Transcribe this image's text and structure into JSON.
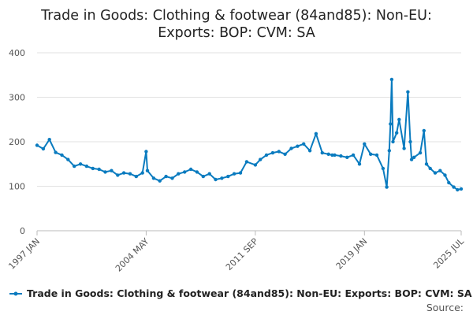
{
  "chart_data": {
    "type": "line",
    "title_lines": [
      "Trade in Goods: Clothing & footwear (84and85): Non-EU:",
      "Exports: BOP: CVM: SA"
    ],
    "xlabel": "",
    "ylabel": "",
    "x_ticks": [
      "1997 JAN",
      "2004 MAY",
      "2011 SEP",
      "2019 JAN",
      "2025 JUL"
    ],
    "y_ticks": [
      0,
      100,
      200,
      300,
      400
    ],
    "ylim": [
      0,
      400
    ],
    "grid": "horizontal",
    "legend_position": "bottom",
    "source_label": "Source:",
    "series": [
      {
        "name": "Trade in Goods: Clothing & footwear (84and85): Non-EU: Exports: BOP: CVM: SA",
        "color": "#0a7bbf",
        "x": [
          "1997 JAN",
          "1997 JUN",
          "1997 NOV",
          "1998 APR",
          "1998 SEP",
          "1999 FEB",
          "1999 JUL",
          "1999 DEC",
          "2000 MAY",
          "2000 OCT",
          "2001 MAR",
          "2001 AUG",
          "2002 JAN",
          "2002 JUN",
          "2002 NOV",
          "2003 APR",
          "2003 SEP",
          "2004 FEB",
          "2004 MAY",
          "2004 JUN",
          "2004 NOV",
          "2005 APR",
          "2005 SEP",
          "2006 FEB",
          "2006 JUL",
          "2006 DEC",
          "2007 MAY",
          "2007 OCT",
          "2008 MAR",
          "2008 AUG",
          "2009 JAN",
          "2009 JUN",
          "2009 NOV",
          "2010 APR",
          "2010 SEP",
          "2011 FEB",
          "2011 SEP",
          "2012 JAN",
          "2012 JUN",
          "2012 NOV",
          "2013 APR",
          "2013 SEP",
          "2014 FEB",
          "2014 JUL",
          "2014 DEC",
          "2015 MAY",
          "2015 OCT",
          "2016 MAR",
          "2016 AUG",
          "2016 NOV",
          "2017 JAN",
          "2017 JUN",
          "2017 NOV",
          "2018 APR",
          "2018 SEP",
          "2019 JAN",
          "2019 JUN",
          "2019 NOV",
          "2020 APR",
          "2020 JUL",
          "2020 SEP",
          "2020 OCT",
          "2020 NOV",
          "2020 DEC",
          "2021 MAR",
          "2021 MAY",
          "2021 SEP",
          "2021 DEC",
          "2022 FEB",
          "2022 MAR",
          "2022 MAY",
          "2022 OCT",
          "2023 JAN",
          "2023 MAR",
          "2023 JUN",
          "2023 OCT",
          "2024 FEB",
          "2024 JUN",
          "2024 SEP",
          "2025 JAN",
          "2025 APR",
          "2025 JUL"
        ],
        "values": [
          192,
          184,
          205,
          176,
          170,
          160,
          145,
          150,
          145,
          140,
          138,
          132,
          135,
          125,
          130,
          128,
          122,
          130,
          178,
          135,
          118,
          112,
          122,
          118,
          128,
          132,
          138,
          132,
          122,
          128,
          115,
          118,
          122,
          128,
          130,
          155,
          148,
          160,
          170,
          175,
          178,
          172,
          185,
          190,
          195,
          180,
          218,
          175,
          172,
          170,
          170,
          168,
          165,
          170,
          150,
          195,
          172,
          170,
          140,
          98,
          180,
          240,
          340,
          200,
          220,
          250,
          185,
          312,
          200,
          160,
          165,
          175,
          225,
          150,
          140,
          130,
          135,
          125,
          108,
          98,
          92,
          94
        ]
      }
    ]
  }
}
